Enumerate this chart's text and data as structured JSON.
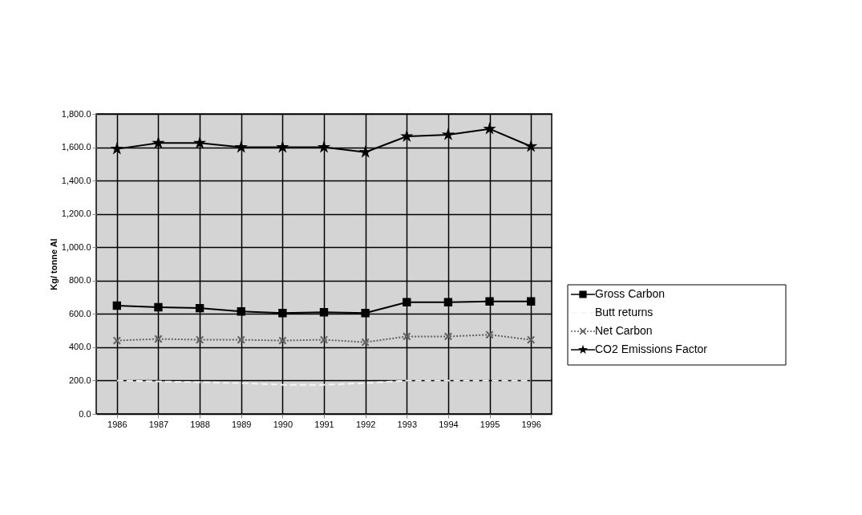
{
  "chart_data": {
    "type": "line",
    "ylabel": "Kg/ tonne Al",
    "categories": [
      "1986",
      "1987",
      "1988",
      "1989",
      "1990",
      "1991",
      "1992",
      "1993",
      "1994",
      "1995",
      "1996"
    ],
    "series": [
      {
        "name": "Gross Carbon",
        "color": "#000000",
        "marker": "square",
        "line_style": "solid",
        "values": [
          650,
          640,
          635,
          615,
          605,
          610,
          605,
          670,
          670,
          675,
          675
        ]
      },
      {
        "name": "Butt returns",
        "color": "#f4f4f4",
        "marker": "none",
        "line_style": "dashed",
        "values": [
          200,
          195,
          190,
          185,
          175,
          175,
          185,
          200,
          200,
          200,
          200
        ]
      },
      {
        "name": "Net Carbon",
        "color": "#606060",
        "marker": "cross",
        "line_style": "dotted",
        "values": [
          440,
          450,
          445,
          445,
          440,
          445,
          430,
          465,
          465,
          475,
          445
        ]
      },
      {
        "name": "CO2 Emissions Factor",
        "color": "#000000",
        "marker": "star",
        "line_style": "solid",
        "values": [
          1590,
          1625,
          1625,
          1600,
          1600,
          1600,
          1570,
          1665,
          1675,
          1710,
          1605
        ]
      }
    ],
    "ylim": [
      0,
      1800
    ],
    "yticks": [
      {
        "value": 0,
        "label": "0.0"
      },
      {
        "value": 200,
        "label": "200.0"
      },
      {
        "value": 400,
        "label": "400.0"
      },
      {
        "value": 600,
        "label": "600.0"
      },
      {
        "value": 800,
        "label": "800.0"
      },
      {
        "value": 1000,
        "label": "1,000.0"
      },
      {
        "value": 1200,
        "label": "1,200.0"
      },
      {
        "value": 1400,
        "label": "1,400.0"
      },
      {
        "value": 1600,
        "label": "1,600.0"
      },
      {
        "value": 1800,
        "label": "1,800.0"
      }
    ],
    "grid": true,
    "legend": "right"
  }
}
